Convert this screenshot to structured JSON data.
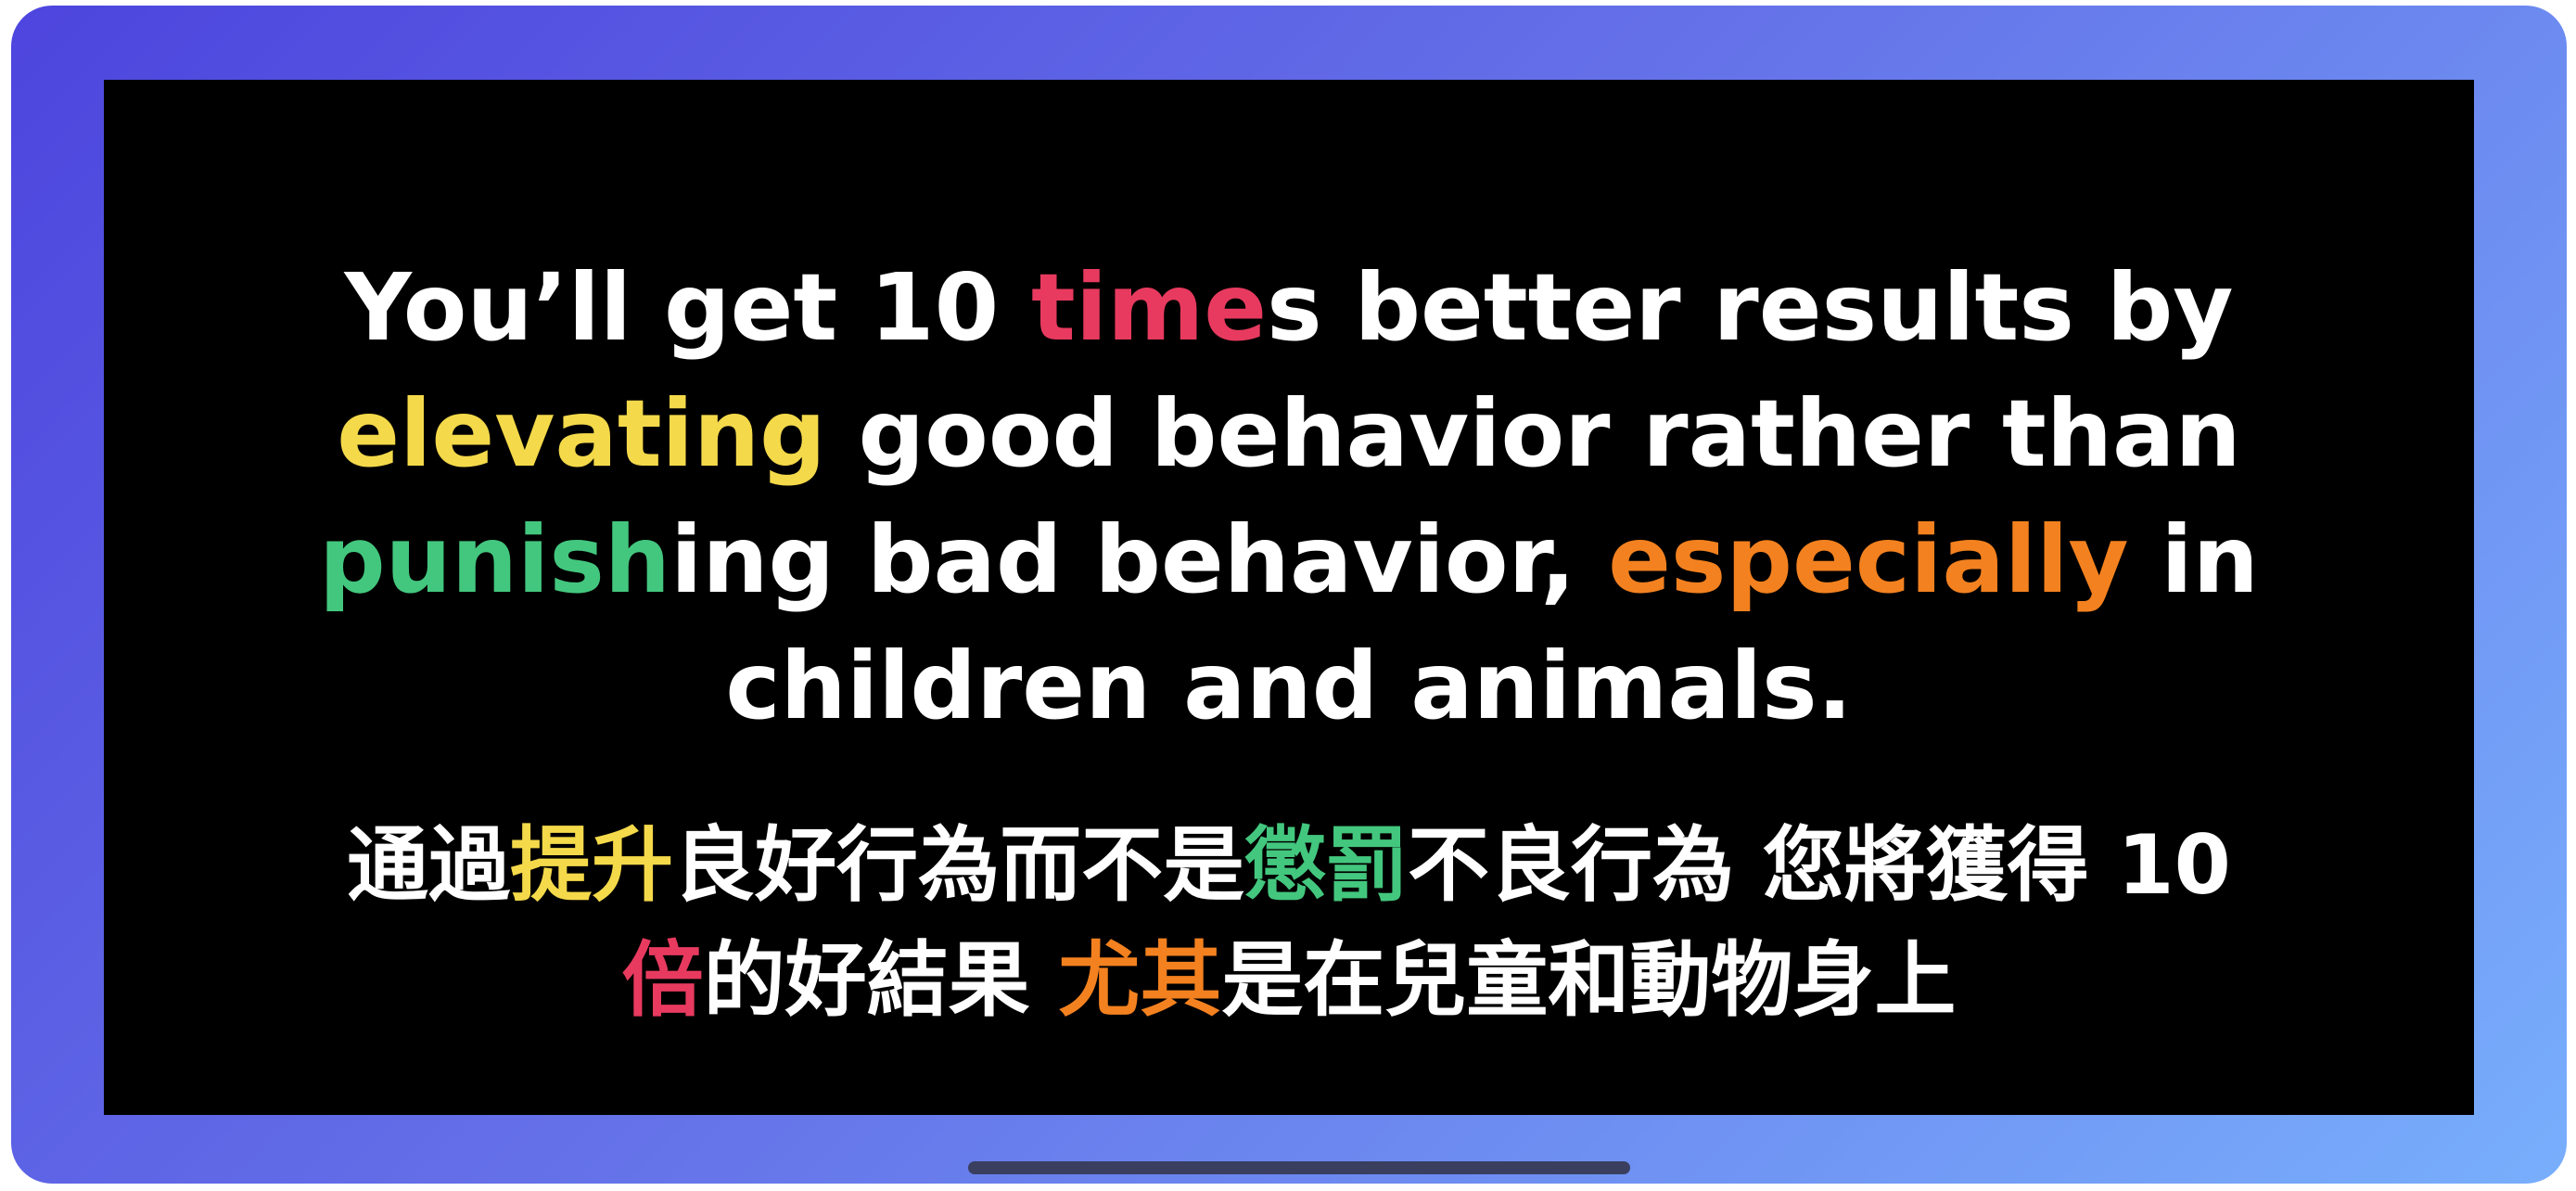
{
  "colors": {
    "red": "#e83a5f",
    "yellow": "#f4d94a",
    "green": "#43c77e",
    "orange": "#f3811f",
    "text": "#ffffff",
    "screen_background": "#000000"
  },
  "english": {
    "line1": {
      "a": "You’ll get 10 ",
      "b_red": "time",
      "c": "s better results by"
    },
    "line2": {
      "a_yellow": "elevating",
      "b": " good behavior rather than"
    },
    "line3": {
      "a_green": "punish",
      "b": "ing bad behavior, ",
      "c_orange": "especially",
      "d": " in"
    },
    "line4": {
      "a": "children and animals."
    }
  },
  "chinese": {
    "line1": {
      "a": "通過",
      "b_yellow": "提升",
      "c": "良好行為而不是",
      "d_green": "懲罰",
      "e": "不良行為 您將獲得 10"
    },
    "line2": {
      "a_red": "倍",
      "b": "的好結果 ",
      "c_orange": "尤其",
      "d": "是在兒童和動物身上"
    }
  }
}
